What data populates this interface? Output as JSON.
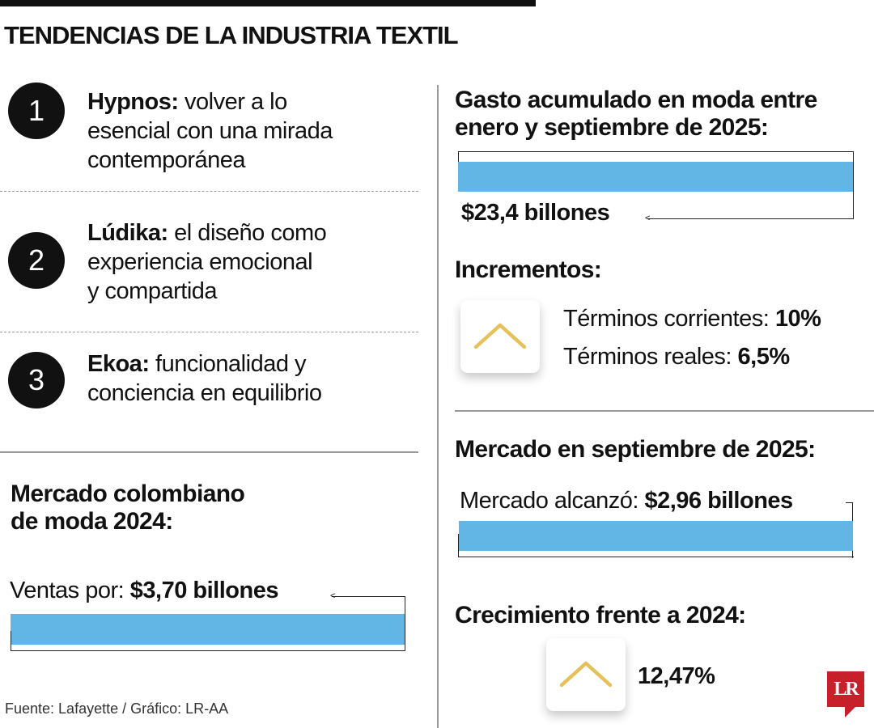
{
  "header": {
    "title": "TENDENCIAS DE LA INDUSTRIA TEXTIL"
  },
  "trends": [
    {
      "number": "1",
      "name": "Hypnos:",
      "lines": [
        " volver a lo",
        "esencial con una mirada",
        "contemporánea"
      ]
    },
    {
      "number": "2",
      "name": "Lúdika:",
      "lines": [
        " el diseño como",
        "experiencia emocional",
        "y compartida"
      ]
    },
    {
      "number": "3",
      "name": "Ekoa:",
      "lines": [
        " funcionalidad y",
        "conciencia en equilibrio"
      ]
    }
  ],
  "market_2024": {
    "heading_lines": [
      "Mercado colombiano",
      "de moda 2024:"
    ],
    "label": "Ventas por: ",
    "value": "$3,70 billones"
  },
  "spending": {
    "heading_lines": [
      "Gasto acumulado en moda entre",
      "enero y septiembre de 2025:"
    ],
    "value": "$23,4 billones"
  },
  "increments": {
    "heading": "Incrementos:",
    "icon": "chevron-up-icon",
    "items": [
      {
        "label": "Términos corrientes: ",
        "value": "10%"
      },
      {
        "label": "Términos reales: ",
        "value": "6,5%"
      }
    ]
  },
  "september": {
    "heading": "Mercado en septiembre de 2025:",
    "label": "Mercado alcanzó: ",
    "value": "$2,96 billones"
  },
  "growth": {
    "heading": "Crecimiento frente a 2024:",
    "icon": "chevron-up-icon",
    "value": "12,47%"
  },
  "source": "Fuente: Lafayette / Gráfico: LR-AA",
  "logo": "LR",
  "colors": {
    "bar": "#62b6e6",
    "chevron": "#e5c15a",
    "logo": "#c8202a"
  }
}
